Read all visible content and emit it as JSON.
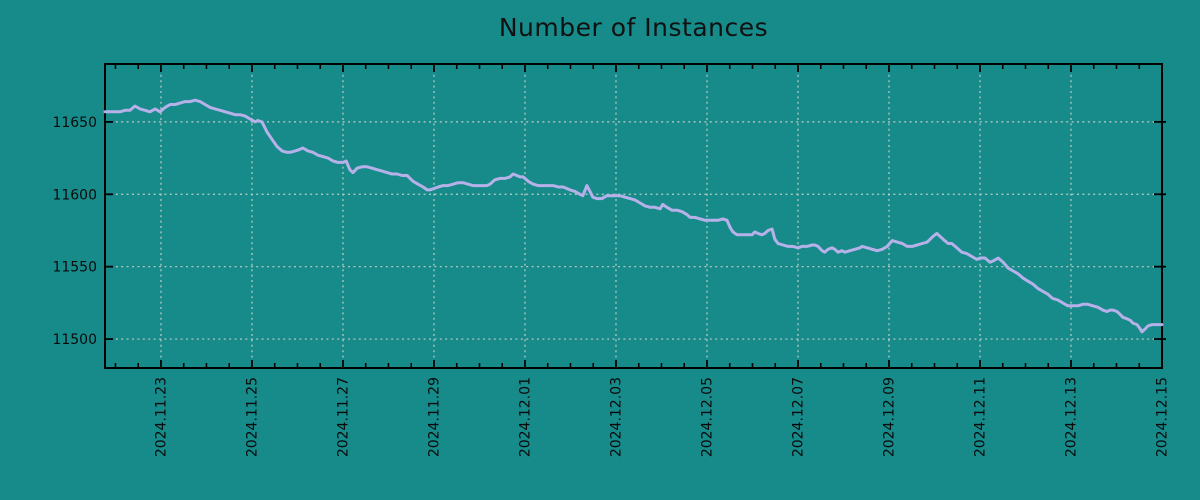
{
  "chart": {
    "title": "Number of Instances",
    "background_color": "#178A8A",
    "line_color": "#B7B1E9",
    "grid_color": "#D2D6CE",
    "axis_color": "#000000",
    "text_color": "#0B0B0B",
    "tick_label_font_px": 14
  },
  "chart_data": {
    "type": "line",
    "title": "Number of Instances",
    "xlabel": "",
    "ylabel": "",
    "x_unit": "days relative to 2024-11-23 00:00",
    "xlim": [
      -1.23,
      22.0
    ],
    "ylim": [
      11480,
      11690
    ],
    "grid": true,
    "legend": "none",
    "y_ticks": [
      11500,
      11550,
      11600,
      11650
    ],
    "x_minor_tick_interval": 0.5,
    "x_ticks": [
      {
        "t": 0,
        "label": "2024.11.23"
      },
      {
        "t": 2,
        "label": "2024.11.25"
      },
      {
        "t": 4,
        "label": "2024.11.27"
      },
      {
        "t": 6,
        "label": "2024.11.29"
      },
      {
        "t": 8,
        "label": "2024.12.01"
      },
      {
        "t": 10,
        "label": "2024.12.03"
      },
      {
        "t": 12,
        "label": "2024.12.05"
      },
      {
        "t": 14,
        "label": "2024.12.07"
      },
      {
        "t": 16,
        "label": "2024.12.09"
      },
      {
        "t": 18,
        "label": "2024.12.11"
      },
      {
        "t": 20,
        "label": "2024.12.13"
      },
      {
        "t": 22,
        "label": "2024.12.15"
      }
    ],
    "series": [
      {
        "name": "instances",
        "points": [
          [
            -1.23,
            11657
          ],
          [
            -1.12,
            11657
          ],
          [
            -1.01,
            11657
          ],
          [
            -0.9,
            11657
          ],
          [
            -0.79,
            11658
          ],
          [
            -0.68,
            11658
          ],
          [
            -0.57,
            11661
          ],
          [
            -0.46,
            11659
          ],
          [
            -0.35,
            11658
          ],
          [
            -0.24,
            11657
          ],
          [
            -0.13,
            11659
          ],
          [
            -0.02,
            11657
          ],
          [
            0.09,
            11660
          ],
          [
            0.2,
            11662
          ],
          [
            0.31,
            11662
          ],
          [
            0.42,
            11663
          ],
          [
            0.53,
            11664
          ],
          [
            0.64,
            11664
          ],
          [
            0.75,
            11665
          ],
          [
            0.86,
            11664
          ],
          [
            0.97,
            11662
          ],
          [
            1.08,
            11660
          ],
          [
            1.19,
            11659
          ],
          [
            1.3,
            11658
          ],
          [
            1.41,
            11657
          ],
          [
            1.52,
            11656
          ],
          [
            1.63,
            11655
          ],
          [
            1.74,
            11655
          ],
          [
            1.85,
            11654
          ],
          [
            1.96,
            11652
          ],
          [
            2.07,
            11650
          ],
          [
            2.13,
            11651
          ],
          [
            2.22,
            11650
          ],
          [
            2.33,
            11643
          ],
          [
            2.44,
            11638
          ],
          [
            2.55,
            11633
          ],
          [
            2.66,
            11630
          ],
          [
            2.77,
            11629
          ],
          [
            2.84,
            11629
          ],
          [
            2.95,
            11630
          ],
          [
            3.05,
            11631
          ],
          [
            3.12,
            11632
          ],
          [
            3.23,
            11630
          ],
          [
            3.34,
            11629
          ],
          [
            3.45,
            11627
          ],
          [
            3.56,
            11626
          ],
          [
            3.67,
            11625
          ],
          [
            3.78,
            11623
          ],
          [
            3.89,
            11622
          ],
          [
            4.0,
            11622
          ],
          [
            4.07,
            11623
          ],
          [
            4.15,
            11617
          ],
          [
            4.22,
            11615
          ],
          [
            4.31,
            11618
          ],
          [
            4.42,
            11619
          ],
          [
            4.53,
            11619
          ],
          [
            4.64,
            11618
          ],
          [
            4.75,
            11617
          ],
          [
            4.86,
            11616
          ],
          [
            4.97,
            11615
          ],
          [
            5.08,
            11614
          ],
          [
            5.19,
            11614
          ],
          [
            5.3,
            11613
          ],
          [
            5.41,
            11613
          ],
          [
            5.54,
            11609
          ],
          [
            5.65,
            11607
          ],
          [
            5.76,
            11605
          ],
          [
            5.85,
            11603
          ],
          [
            5.91,
            11603
          ],
          [
            6.0,
            11604
          ],
          [
            6.09,
            11605
          ],
          [
            6.2,
            11606
          ],
          [
            6.31,
            11606
          ],
          [
            6.42,
            11607
          ],
          [
            6.53,
            11608
          ],
          [
            6.64,
            11608
          ],
          [
            6.75,
            11607
          ],
          [
            6.86,
            11606
          ],
          [
            6.95,
            11606
          ],
          [
            7.08,
            11606
          ],
          [
            7.16,
            11606
          ],
          [
            7.23,
            11607
          ],
          [
            7.34,
            11610
          ],
          [
            7.45,
            11611
          ],
          [
            7.56,
            11611
          ],
          [
            7.67,
            11612
          ],
          [
            7.74,
            11614
          ],
          [
            7.82,
            11613
          ],
          [
            7.89,
            11612
          ],
          [
            7.96,
            11612
          ],
          [
            8.07,
            11609
          ],
          [
            8.18,
            11607
          ],
          [
            8.29,
            11606
          ],
          [
            8.4,
            11606
          ],
          [
            8.51,
            11606
          ],
          [
            8.62,
            11606
          ],
          [
            8.73,
            11605
          ],
          [
            8.84,
            11605
          ],
          [
            8.99,
            11603
          ],
          [
            9.1,
            11602
          ],
          [
            9.21,
            11600
          ],
          [
            9.27,
            11599
          ],
          [
            9.36,
            11606
          ],
          [
            9.43,
            11602
          ],
          [
            9.49,
            11598
          ],
          [
            9.58,
            11597
          ],
          [
            9.69,
            11597
          ],
          [
            9.8,
            11599
          ],
          [
            9.91,
            11599
          ],
          [
            9.98,
            11599
          ],
          [
            10.09,
            11599
          ],
          [
            10.2,
            11598
          ],
          [
            10.31,
            11597
          ],
          [
            10.42,
            11596
          ],
          [
            10.53,
            11594
          ],
          [
            10.64,
            11592
          ],
          [
            10.75,
            11591
          ],
          [
            10.86,
            11591
          ],
          [
            10.97,
            11590
          ],
          [
            11.03,
            11593
          ],
          [
            11.12,
            11591
          ],
          [
            11.23,
            11589
          ],
          [
            11.34,
            11589
          ],
          [
            11.45,
            11588
          ],
          [
            11.56,
            11586
          ],
          [
            11.63,
            11584
          ],
          [
            11.74,
            11584
          ],
          [
            11.85,
            11583
          ],
          [
            11.96,
            11582
          ],
          [
            12.07,
            11582
          ],
          [
            12.18,
            11582
          ],
          [
            12.24,
            11582
          ],
          [
            12.35,
            11583
          ],
          [
            12.44,
            11582
          ],
          [
            12.51,
            11577
          ],
          [
            12.57,
            11574
          ],
          [
            12.66,
            11572
          ],
          [
            12.77,
            11572
          ],
          [
            12.88,
            11572
          ],
          [
            12.99,
            11572
          ],
          [
            13.05,
            11574
          ],
          [
            13.12,
            11573
          ],
          [
            13.21,
            11572
          ],
          [
            13.27,
            11573
          ],
          [
            13.34,
            11575
          ],
          [
            13.43,
            11576
          ],
          [
            13.49,
            11569
          ],
          [
            13.56,
            11566
          ],
          [
            13.67,
            11565
          ],
          [
            13.78,
            11564
          ],
          [
            13.89,
            11564
          ],
          [
            14.0,
            11563
          ],
          [
            14.09,
            11564
          ],
          [
            14.2,
            11564
          ],
          [
            14.31,
            11565
          ],
          [
            14.37,
            11565
          ],
          [
            14.44,
            11564
          ],
          [
            14.53,
            11561
          ],
          [
            14.59,
            11560
          ],
          [
            14.66,
            11562
          ],
          [
            14.75,
            11563
          ],
          [
            14.81,
            11562
          ],
          [
            14.88,
            11560
          ],
          [
            14.97,
            11561
          ],
          [
            15.03,
            11560
          ],
          [
            15.14,
            11561
          ],
          [
            15.25,
            11562
          ],
          [
            15.36,
            11563
          ],
          [
            15.41,
            11564
          ],
          [
            15.52,
            11563
          ],
          [
            15.63,
            11562
          ],
          [
            15.74,
            11561
          ],
          [
            15.85,
            11562
          ],
          [
            15.96,
            11564
          ],
          [
            16.07,
            11568
          ],
          [
            16.18,
            11567
          ],
          [
            16.29,
            11566
          ],
          [
            16.4,
            11564
          ],
          [
            16.51,
            11564
          ],
          [
            16.62,
            11565
          ],
          [
            16.73,
            11566
          ],
          [
            16.84,
            11567
          ],
          [
            16.97,
            11571
          ],
          [
            17.05,
            11573
          ],
          [
            17.19,
            11569
          ],
          [
            17.3,
            11566
          ],
          [
            17.38,
            11566
          ],
          [
            17.49,
            11563
          ],
          [
            17.6,
            11560
          ],
          [
            17.71,
            11559
          ],
          [
            17.82,
            11557
          ],
          [
            17.93,
            11555
          ],
          [
            18.0,
            11556
          ],
          [
            18.11,
            11556
          ],
          [
            18.22,
            11553
          ],
          [
            18.29,
            11554
          ],
          [
            18.4,
            11556
          ],
          [
            18.51,
            11553
          ],
          [
            18.62,
            11549
          ],
          [
            18.73,
            11547
          ],
          [
            18.84,
            11545
          ],
          [
            18.95,
            11542
          ],
          [
            19.05,
            11540
          ],
          [
            19.16,
            11538
          ],
          [
            19.27,
            11535
          ],
          [
            19.38,
            11533
          ],
          [
            19.49,
            11531
          ],
          [
            19.6,
            11528
          ],
          [
            19.71,
            11527
          ],
          [
            19.82,
            11525
          ],
          [
            19.93,
            11523
          ],
          [
            20.04,
            11523
          ],
          [
            20.15,
            11523
          ],
          [
            20.26,
            11524
          ],
          [
            20.37,
            11524
          ],
          [
            20.48,
            11523
          ],
          [
            20.59,
            11522
          ],
          [
            20.7,
            11520
          ],
          [
            20.79,
            11519
          ],
          [
            20.86,
            11520
          ],
          [
            20.92,
            11520
          ],
          [
            21.01,
            11519
          ],
          [
            21.08,
            11517
          ],
          [
            21.14,
            11515
          ],
          [
            21.23,
            11514
          ],
          [
            21.3,
            11513
          ],
          [
            21.36,
            11511
          ],
          [
            21.45,
            11510
          ],
          [
            21.52,
            11507
          ],
          [
            21.56,
            11505
          ],
          [
            21.63,
            11507
          ],
          [
            21.69,
            11509
          ],
          [
            21.78,
            11510
          ],
          [
            21.87,
            11510
          ],
          [
            22.0,
            11510
          ]
        ]
      }
    ]
  }
}
